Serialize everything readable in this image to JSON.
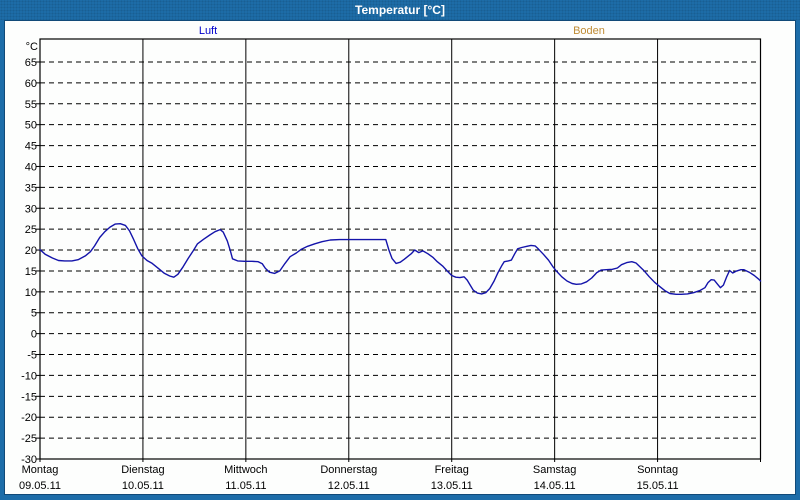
{
  "window": {
    "title": "Temperatur [°C]"
  },
  "legend": {
    "items": [
      {
        "label": "Luft",
        "color": "#0000cc"
      },
      {
        "label": "Boden",
        "color": "#bf8c35"
      }
    ]
  },
  "colors": {
    "titlebar": "#1d6da9",
    "panel_background": "#fdfefd",
    "axis": "#000000",
    "luft_line": "#1414aa",
    "boden_text": "#bf8c35"
  },
  "chart_data": {
    "type": "line",
    "title": "Temperatur [°C]",
    "ylabel": "°C",
    "unit_label": "°C",
    "grid": true,
    "ylim": [
      -30,
      70.5
    ],
    "yticks": [
      65,
      60,
      55,
      50,
      45,
      40,
      35,
      30,
      25,
      20,
      15,
      10,
      5,
      0,
      -5,
      -10,
      -15,
      -20,
      -25,
      -30
    ],
    "x_days": 7,
    "days": [
      {
        "name": "Montag",
        "date": "09.05.11"
      },
      {
        "name": "Dienstag",
        "date": "10.05.11"
      },
      {
        "name": "Mittwoch",
        "date": "11.05.11"
      },
      {
        "name": "Donnerstag",
        "date": "12.05.11"
      },
      {
        "name": "Freitag",
        "date": "13.05.11"
      },
      {
        "name": "Samstag",
        "date": "14.05.11"
      },
      {
        "name": "Sonntag",
        "date": "15.05.11"
      }
    ],
    "series": [
      {
        "name": "Luft",
        "color": "#1414aa",
        "points": [
          [
            0.0,
            20.1
          ],
          [
            0.05,
            19.0
          ],
          [
            0.12,
            18.1
          ],
          [
            0.18,
            17.5
          ],
          [
            0.24,
            17.4
          ],
          [
            0.31,
            17.4
          ],
          [
            0.37,
            17.7
          ],
          [
            0.44,
            18.6
          ],
          [
            0.49,
            19.6
          ],
          [
            0.53,
            21.0
          ],
          [
            0.58,
            23.0
          ],
          [
            0.63,
            24.4
          ],
          [
            0.68,
            25.5
          ],
          [
            0.73,
            26.2
          ],
          [
            0.78,
            26.3
          ],
          [
            0.83,
            25.9
          ],
          [
            0.87,
            24.6
          ],
          [
            0.91,
            22.5
          ],
          [
            0.95,
            20.3
          ],
          [
            0.99,
            18.6
          ],
          [
            1.04,
            17.5
          ],
          [
            1.09,
            16.8
          ],
          [
            1.15,
            15.6
          ],
          [
            1.21,
            14.4
          ],
          [
            1.26,
            13.8
          ],
          [
            1.3,
            13.5
          ],
          [
            1.34,
            14.2
          ],
          [
            1.39,
            16.0
          ],
          [
            1.44,
            18.0
          ],
          [
            1.49,
            19.9
          ],
          [
            1.53,
            21.5
          ],
          [
            1.59,
            22.6
          ],
          [
            1.65,
            23.6
          ],
          [
            1.7,
            24.4
          ],
          [
            1.75,
            24.9
          ],
          [
            1.78,
            24.3
          ],
          [
            1.82,
            22.2
          ],
          [
            1.85,
            19.8
          ],
          [
            1.87,
            17.9
          ],
          [
            1.92,
            17.4
          ],
          [
            1.99,
            17.3
          ],
          [
            2.06,
            17.3
          ],
          [
            2.12,
            17.2
          ],
          [
            2.16,
            16.7
          ],
          [
            2.19,
            15.6
          ],
          [
            2.23,
            14.7
          ],
          [
            2.28,
            14.4
          ],
          [
            2.33,
            15.0
          ],
          [
            2.38,
            16.8
          ],
          [
            2.43,
            18.4
          ],
          [
            2.49,
            19.3
          ],
          [
            2.54,
            20.2
          ],
          [
            2.6,
            20.9
          ],
          [
            2.67,
            21.5
          ],
          [
            2.74,
            22.0
          ],
          [
            2.82,
            22.4
          ],
          [
            2.91,
            22.5
          ],
          [
            3.01,
            22.5
          ],
          [
            3.11,
            22.5
          ],
          [
            3.2,
            22.5
          ],
          [
            3.3,
            22.5
          ],
          [
            3.36,
            22.5
          ],
          [
            3.39,
            20.0
          ],
          [
            3.42,
            18.0
          ],
          [
            3.46,
            16.8
          ],
          [
            3.5,
            17.1
          ],
          [
            3.54,
            17.8
          ],
          [
            3.61,
            19.2
          ],
          [
            3.64,
            20.0
          ],
          [
            3.68,
            19.4
          ],
          [
            3.72,
            19.8
          ],
          [
            3.77,
            19.1
          ],
          [
            3.82,
            18.2
          ],
          [
            3.86,
            17.2
          ],
          [
            3.91,
            16.2
          ],
          [
            3.96,
            14.9
          ],
          [
            4.0,
            13.9
          ],
          [
            4.04,
            13.5
          ],
          [
            4.08,
            13.4
          ],
          [
            4.12,
            13.6
          ],
          [
            4.15,
            12.8
          ],
          [
            4.18,
            11.6
          ],
          [
            4.21,
            10.4
          ],
          [
            4.25,
            9.7
          ],
          [
            4.29,
            9.5
          ],
          [
            4.33,
            9.8
          ],
          [
            4.37,
            10.8
          ],
          [
            4.41,
            12.5
          ],
          [
            4.45,
            14.6
          ],
          [
            4.49,
            16.4
          ],
          [
            4.51,
            17.2
          ],
          [
            4.55,
            17.4
          ],
          [
            4.58,
            17.6
          ],
          [
            4.61,
            19.0
          ],
          [
            4.64,
            20.3
          ],
          [
            4.68,
            20.6
          ],
          [
            4.73,
            20.9
          ],
          [
            4.77,
            21.1
          ],
          [
            4.81,
            21.0
          ],
          [
            4.84,
            20.3
          ],
          [
            4.89,
            19.0
          ],
          [
            4.94,
            17.6
          ],
          [
            4.98,
            16.1
          ],
          [
            5.02,
            14.9
          ],
          [
            5.07,
            13.6
          ],
          [
            5.12,
            12.6
          ],
          [
            5.17,
            12.0
          ],
          [
            5.21,
            11.8
          ],
          [
            5.26,
            11.9
          ],
          [
            5.31,
            12.4
          ],
          [
            5.36,
            13.3
          ],
          [
            5.41,
            14.6
          ],
          [
            5.45,
            15.2
          ],
          [
            5.5,
            15.3
          ],
          [
            5.56,
            15.4
          ],
          [
            5.61,
            15.7
          ],
          [
            5.65,
            16.5
          ],
          [
            5.7,
            17.0
          ],
          [
            5.75,
            17.2
          ],
          [
            5.79,
            16.9
          ],
          [
            5.82,
            16.2
          ],
          [
            5.87,
            15.0
          ],
          [
            5.92,
            13.6
          ],
          [
            5.97,
            12.3
          ],
          [
            6.02,
            11.3
          ],
          [
            6.07,
            10.3
          ],
          [
            6.12,
            9.6
          ],
          [
            6.18,
            9.4
          ],
          [
            6.23,
            9.4
          ],
          [
            6.29,
            9.5
          ],
          [
            6.35,
            9.8
          ],
          [
            6.41,
            10.3
          ],
          [
            6.46,
            11.0
          ],
          [
            6.49,
            12.2
          ],
          [
            6.52,
            12.9
          ],
          [
            6.55,
            12.8
          ],
          [
            6.58,
            11.9
          ],
          [
            6.61,
            11.0
          ],
          [
            6.64,
            11.6
          ],
          [
            6.67,
            13.5
          ],
          [
            6.7,
            15.1
          ],
          [
            6.73,
            14.5
          ],
          [
            6.77,
            15.0
          ],
          [
            6.81,
            15.3
          ],
          [
            6.84,
            15.3
          ],
          [
            6.89,
            14.7
          ],
          [
            6.94,
            13.9
          ],
          [
            6.98,
            13.1
          ],
          [
            7.0,
            12.6
          ]
        ]
      },
      {
        "name": "Boden",
        "color": "#bf8c35",
        "points": []
      }
    ]
  }
}
